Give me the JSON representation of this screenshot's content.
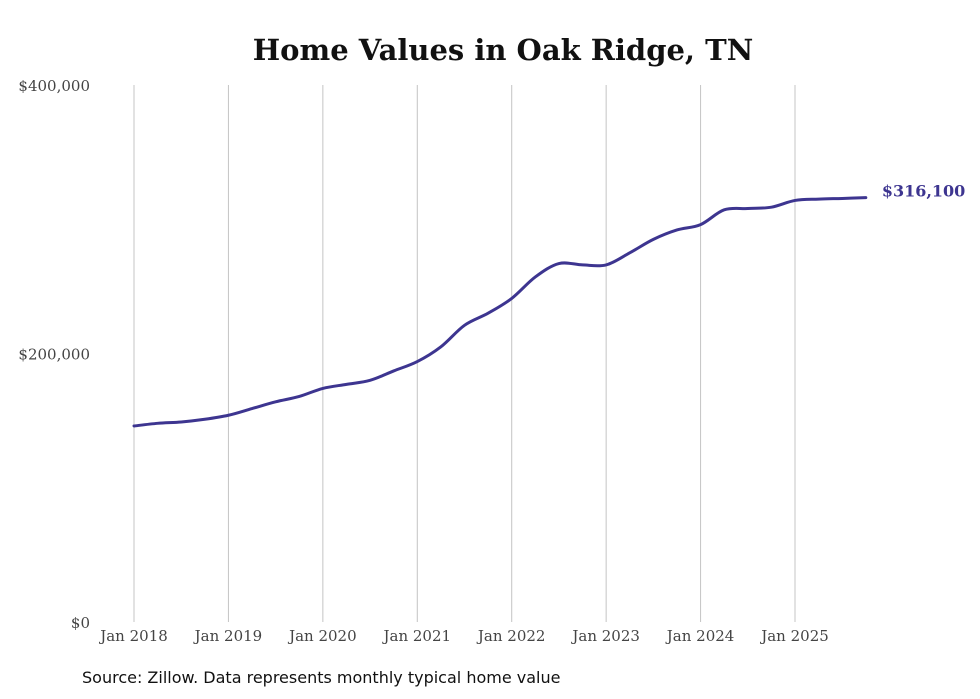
{
  "chart_data": {
    "type": "line",
    "title": "Home Values in Oak Ridge, TN",
    "xlabel": "",
    "ylabel": "",
    "ylim": [
      0,
      400000
    ],
    "y_ticks": [
      {
        "value": 0,
        "label": "$0"
      },
      {
        "value": 200000,
        "label": "$200,000"
      },
      {
        "value": 400000,
        "label": "$400,000"
      }
    ],
    "x_ticks": [
      {
        "value": "2018-01",
        "label": "Jan 2018"
      },
      {
        "value": "2019-01",
        "label": "Jan 2019"
      },
      {
        "value": "2020-01",
        "label": "Jan 2020"
      },
      {
        "value": "2021-01",
        "label": "Jan 2021"
      },
      {
        "value": "2022-01",
        "label": "Jan 2022"
      },
      {
        "value": "2023-01",
        "label": "Jan 2023"
      },
      {
        "value": "2024-01",
        "label": "Jan 2024"
      },
      {
        "value": "2025-01",
        "label": "Jan 2025"
      }
    ],
    "grid": "vertical",
    "series": [
      {
        "name": "Typical home value",
        "color": "#3d3590",
        "x": [
          "2018-01",
          "2018-04",
          "2018-07",
          "2018-10",
          "2019-01",
          "2019-04",
          "2019-07",
          "2019-10",
          "2020-01",
          "2020-04",
          "2020-07",
          "2020-10",
          "2021-01",
          "2021-04",
          "2021-07",
          "2021-10",
          "2022-01",
          "2022-04",
          "2022-07",
          "2022-10",
          "2023-01",
          "2023-04",
          "2023-07",
          "2023-10",
          "2024-01",
          "2024-04",
          "2024-07",
          "2024-10",
          "2025-01",
          "2025-04",
          "2025-07",
          "2025-10"
        ],
        "values": [
          146000,
          148000,
          149000,
          151000,
          154000,
          159000,
          164000,
          168000,
          174000,
          177000,
          180000,
          187000,
          194000,
          205000,
          221000,
          230000,
          241000,
          257000,
          267000,
          266000,
          266000,
          275000,
          285000,
          292000,
          296000,
          307000,
          308000,
          309000,
          314000,
          315000,
          315500,
          316100
        ]
      }
    ],
    "end_label": "$316,100"
  },
  "source": "Source: Zillow. Data represents monthly typical home value"
}
